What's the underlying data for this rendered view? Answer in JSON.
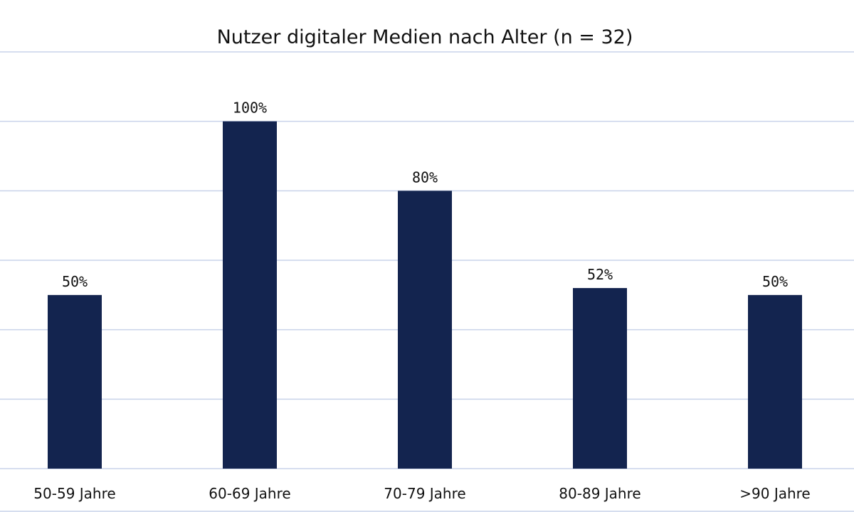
{
  "chart_data": {
    "type": "bar",
    "title": "Nutzer digitaler Medien nach Alter (n = 32)",
    "categories": [
      "50-59 Jahre",
      "60-69 Jahre",
      "70-79 Jahre",
      "80-89 Jahre",
      ">90 Jahre"
    ],
    "values": [
      50,
      100,
      80,
      52,
      50
    ],
    "data_labels": [
      "50%",
      "100%",
      "80%",
      "52%",
      "50%"
    ],
    "unit": "%",
    "ylim": [
      0,
      120
    ],
    "ytick_step": 20,
    "grid": true,
    "y_axis_labels_shown": false,
    "legend": "none",
    "colors": {
      "bar": "#13244f",
      "grid": "#c9d3ea",
      "text": "#111111"
    }
  }
}
